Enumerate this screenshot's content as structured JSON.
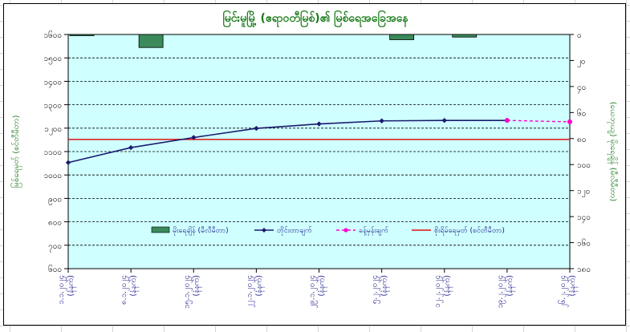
{
  "chart_data": {
    "type": "bar+line",
    "title": "မြင်းမူမြို့ (ဧရာဝတီမြစ်)၏ မြစ်ရေအခြေအနေ",
    "ylabel_left": "မြစ်ရေမှတ် (စင်တီမီတာ)",
    "ylabel_right": "(ယေဘုယျ) မိုးရေချိန် (မီလီမီတာ)",
    "y_left": {
      "min": 600,
      "max": 1600,
      "reversed": false,
      "ticks": [
        600,
        700,
        800,
        900,
        1000,
        1100,
        1200,
        1300,
        1400,
        1500,
        1600
      ],
      "tick_labels": [
        "၆၀၀",
        "၇၀၀",
        "၈၀၀",
        "၉၀၀",
        "၁၀၀၀",
        "၁၁၀၀",
        "၁၂၀၀",
        "၁၃၀၀",
        "၁၄၀၀",
        "၁၅၀၀",
        "၁၆၀၀"
      ]
    },
    "y_right": {
      "min": 0,
      "max": 180,
      "reversed": true,
      "ticks": [
        0,
        20,
        40,
        60,
        80,
        100,
        120,
        140,
        160,
        180
      ],
      "tick_labels": [
        "၀",
        "၂၀",
        "၄၀",
        "၆၀",
        "၈၀",
        "၁၀၀",
        "၁၂၀",
        "၁၄၀",
        "၁၆၀",
        "၁၈၀"
      ]
    },
    "grid": true,
    "categories": [
      [
        "၁.၁.၂၀၂၄",
        "(နံနက်)"
      ],
      [
        "၈.၁.၂၀၂၄",
        "(နံနက်)"
      ],
      [
        "၁၅.၁.၂၀၂၄",
        "(နံနက်)"
      ],
      [
        "၂၂.၁.၂၀၂၄",
        "(နံနက်)"
      ],
      [
        "၂၉.၁.၂၀၂၄",
        "(နံနက်)"
      ],
      [
        "၅.၂.၂၀၂၄",
        "(နံနက်)"
      ],
      [
        "၁၂.၂.၂၀၂၄",
        "(နံနက်)"
      ],
      [
        "၁၉.၂.၂၀၂၄",
        "(နံနက်)"
      ],
      [
        "၂၆.၂.၂၀၂၄",
        "(နံနက်)"
      ]
    ],
    "series": [
      {
        "name": "မိုးရေချိန် (မီလီမီတာ)",
        "type": "bar",
        "axis": "right",
        "color": "#3a8a5a",
        "values": [
          0.3,
          10,
          null,
          null,
          null,
          4,
          2,
          null,
          null
        ]
      },
      {
        "name": "တိုင်းတာချက်",
        "type": "line",
        "axis": "left",
        "color": "#1a1a6e",
        "marker": "diamond",
        "values": [
          1053,
          1117,
          1160,
          1199,
          1218,
          1231,
          1233,
          1233,
          null
        ]
      },
      {
        "name": "ခန့်မှန်းချက်",
        "type": "line-dashed",
        "axis": "left",
        "color": "#ff00cc",
        "marker": "circle",
        "values": [
          null,
          null,
          null,
          null,
          null,
          null,
          null,
          1233,
          1227
        ]
      },
      {
        "name": "စိုးရိမ်ရေမှတ် (စင်တီမီတာ)",
        "type": "hline",
        "axis": "left",
        "color": "#e01010",
        "value": 1152
      }
    ],
    "legend_position": "inside-bottom"
  }
}
